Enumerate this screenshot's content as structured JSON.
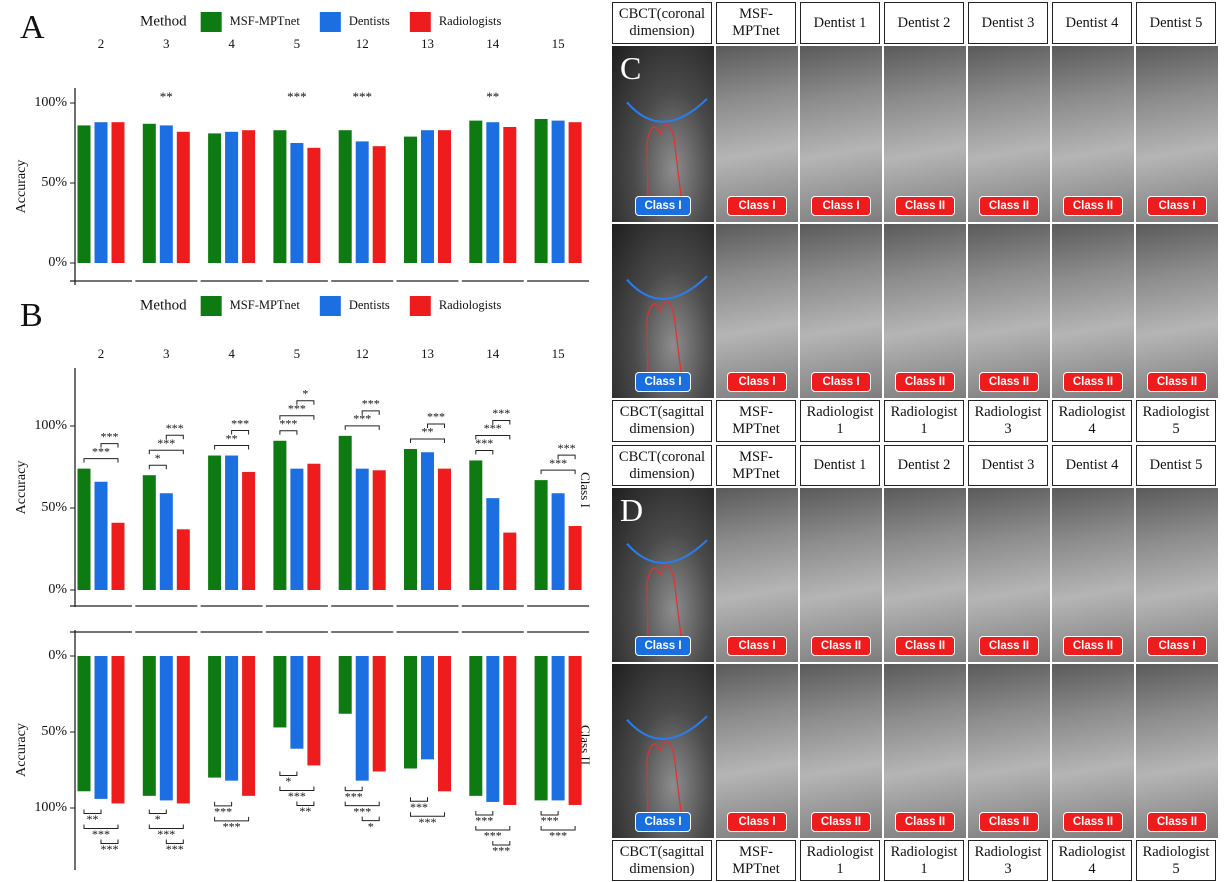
{
  "chart_data": [
    {
      "type": "bar",
      "panel": "A",
      "legend_title": "Method",
      "y_label": "Accuracy",
      "categories": [
        "2",
        "3",
        "4",
        "5",
        "12",
        "13",
        "14",
        "15"
      ],
      "series": [
        {
          "name": "MSF-MPTnet",
          "color": "#0e7a12",
          "values": [
            86,
            87,
            81,
            83,
            83,
            79,
            89,
            90
          ]
        },
        {
          "name": "Dentists",
          "color": "#1c6fe0",
          "values": [
            88,
            86,
            82,
            75,
            76,
            83,
            88,
            89
          ]
        },
        {
          "name": "Radiologists",
          "color": "#ee1c1c",
          "values": [
            88,
            82,
            83,
            72,
            73,
            83,
            85,
            88
          ]
        }
      ],
      "annotations": [
        null,
        "**",
        null,
        "***",
        "***",
        null,
        "**",
        null
      ],
      "ylim": [
        -10,
        110
      ],
      "yticks": [
        {
          "value": 0,
          "label": "0%"
        },
        {
          "value": 50,
          "label": "50%"
        },
        {
          "value": 100,
          "label": "100%"
        }
      ]
    },
    {
      "type": "bar",
      "panel": "B",
      "legend_title": "Method",
      "categories": [
        "2",
        "3",
        "4",
        "5",
        "12",
        "13",
        "14",
        "15"
      ],
      "methods": [
        {
          "name": "MSF-MPTnet",
          "color": "#0e7a12"
        },
        {
          "name": "Dentists",
          "color": "#1c6fe0"
        },
        {
          "name": "Radiologists",
          "color": "#ee1c1c"
        }
      ],
      "panels": [
        {
          "strip": "Class I",
          "y_label": "Accuracy",
          "ylim": [
            0,
            135
          ],
          "yticks": [
            {
              "value": 0,
              "label": "0%"
            },
            {
              "value": 50,
              "label": "50%"
            },
            {
              "value": 100,
              "label": "100%"
            }
          ],
          "values": [
            [
              74,
              70,
              82,
              91,
              94,
              86,
              79,
              67
            ],
            [
              66,
              59,
              82,
              74,
              74,
              84,
              56,
              59
            ],
            [
              41,
              37,
              72,
              77,
              73,
              74,
              35,
              39
            ]
          ],
          "comparisons": [
            [
              "***",
              "***"
            ],
            [
              "***",
              "***",
              "*"
            ],
            [
              "***",
              "**"
            ],
            [
              "*",
              "***",
              "***"
            ],
            [
              "***",
              "***"
            ],
            [
              "***",
              "**"
            ],
            [
              "***",
              "***",
              "***"
            ],
            [
              "***",
              "***"
            ]
          ]
        },
        {
          "strip": "Class II",
          "y_label": "Accuracy",
          "ylim": [
            0,
            140
          ],
          "reverse_y": true,
          "yticks": [
            {
              "value": 0,
              "label": "0%"
            },
            {
              "value": 50,
              "label": "50%"
            },
            {
              "value": 100,
              "label": "100%"
            }
          ],
          "values": [
            [
              89,
              92,
              80,
              47,
              38,
              74,
              92,
              95
            ],
            [
              94,
              95,
              82,
              61,
              82,
              68,
              96,
              95
            ],
            [
              97,
              97,
              92,
              72,
              76,
              89,
              98,
              98
            ]
          ],
          "comparisons": [
            [
              "**",
              "***",
              "***"
            ],
            [
              "*",
              "***",
              "***"
            ],
            [
              "***",
              "***"
            ],
            [
              "*",
              "***",
              "**"
            ],
            [
              "***",
              "***",
              "*"
            ],
            [
              "***",
              "***"
            ],
            [
              "***",
              "***",
              "***"
            ],
            [
              "***",
              "***"
            ]
          ]
        }
      ]
    }
  ],
  "image_panels": [
    {
      "label": "C",
      "header": [
        "CBCT(coronal dimension)",
        "MSF-MPTnet",
        "Dentist 1",
        "Dentist 2",
        "Dentist 3",
        "Dentist 4",
        "Dentist 5"
      ],
      "rows": [
        [
          "Class I",
          "Class I",
          "Class I",
          "Class II",
          "Class II",
          "Class II",
          "Class I"
        ],
        [
          "Class I",
          "Class I",
          "Class I",
          "Class II",
          "Class II",
          "Class II",
          "Class II"
        ]
      ],
      "footer": [
        "CBCT(sagittal dimension)",
        "MSF-MPTnet",
        "Radiologist 1",
        "Radiologist 1",
        "Radiologist 3",
        "Radiologist 4",
        "Radiologist 5"
      ]
    },
    {
      "label": "D",
      "header": [
        "CBCT(coronal dimension)",
        "MSF-MPTnet",
        "Dentist 1",
        "Dentist 2",
        "Dentist 3",
        "Dentist 4",
        "Dentist 5"
      ],
      "rows": [
        [
          "Class I",
          "Class I",
          "Class II",
          "Class II",
          "Class II",
          "Class II",
          "Class I"
        ],
        [
          "Class I",
          "Class I",
          "Class II",
          "Class II",
          "Class II",
          "Class II",
          "Class II"
        ]
      ],
      "footer": [
        "CBCT(sagittal dimension)",
        "MSF-MPTnet",
        "Radiologist 1",
        "Radiologist 1",
        "Radiologist 3",
        "Radiologist 4",
        "Radiologist 5"
      ]
    }
  ]
}
